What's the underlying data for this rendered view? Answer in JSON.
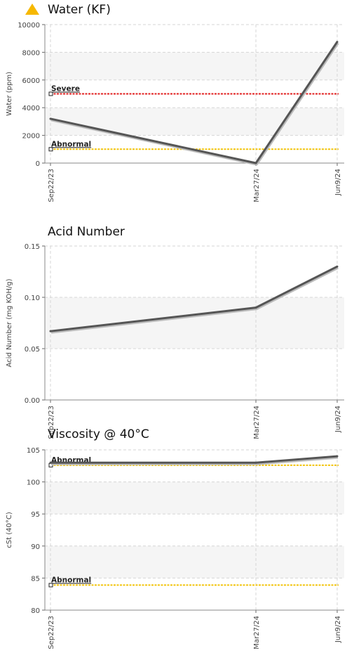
{
  "colors": {
    "warning_icon": "#f6b800",
    "severe": "#e02020",
    "abnormal": "#f2c40c",
    "series": "#555555",
    "grid": "#d6d6d6",
    "band": "#f5f5f5"
  },
  "chart_data": [
    {
      "type": "line",
      "title": "Water (KF)",
      "warning_icon": "warning-triangle-icon",
      "ylabel": "Water (ppm)",
      "ylim": [
        0,
        10000
      ],
      "yticks": [
        0,
        2000,
        4000,
        6000,
        8000,
        10000
      ],
      "ytick_labels": [
        "0",
        "2000",
        "4000",
        "6000",
        "8000",
        "10000"
      ],
      "categories": [
        "Sep22/23",
        "Mar27/24",
        "Jun9/24"
      ],
      "x": [
        0,
        187,
        261
      ],
      "values": [
        3200,
        0,
        8750
      ],
      "grid": true,
      "thresholds": [
        {
          "label": "Severe",
          "value": 5000,
          "level": "severe"
        },
        {
          "label": "Abnormal",
          "value": 1000,
          "level": "abnormal"
        }
      ]
    },
    {
      "type": "line",
      "title": "Acid Number",
      "ylabel": "Acid Number (mg KOH/g)",
      "ylim": [
        0,
        0.15
      ],
      "yticks": [
        0,
        0.05,
        0.1,
        0.15
      ],
      "ytick_labels": [
        "0.00",
        "0.05",
        "0.10",
        "0.15"
      ],
      "categories": [
        "Sep22/23",
        "Mar27/24",
        "Jun9/24"
      ],
      "x": [
        0,
        187,
        261
      ],
      "values": [
        0.067,
        0.09,
        0.13
      ],
      "grid": true,
      "thresholds": []
    },
    {
      "type": "line",
      "title": "Viscosity @ 40°C",
      "ylabel": "cSt (40°C)",
      "ylim": [
        80,
        105
      ],
      "yticks": [
        80,
        85,
        90,
        95,
        100,
        105
      ],
      "ytick_labels": [
        "80",
        "85",
        "90",
        "95",
        "100",
        "105"
      ],
      "categories": [
        "Sep22/23",
        "Mar27/24",
        "Jun9/24"
      ],
      "x": [
        0,
        187,
        261
      ],
      "values": [
        103,
        103,
        104
      ],
      "grid": true,
      "thresholds": [
        {
          "label": "Abnormal",
          "value": 102.6,
          "level": "abnormal"
        },
        {
          "label": "Abnormal",
          "value": 83.9,
          "level": "abnormal"
        }
      ]
    }
  ]
}
